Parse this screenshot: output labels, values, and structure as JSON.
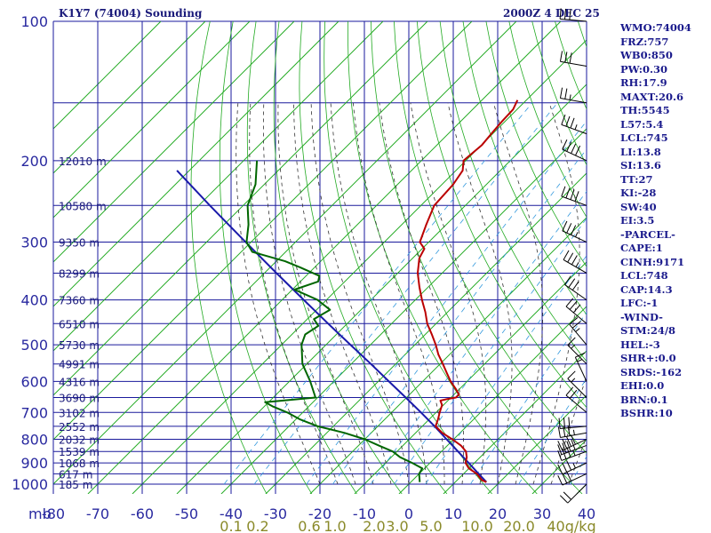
{
  "header": {
    "station": "K1Y7 (74004) Sounding",
    "time": "2000Z  4 DEC 25"
  },
  "indices": [
    "WMO:74004",
    "FRZ:757",
    "WB0:850",
    "PW:0.30",
    "RH:17.9",
    "MAXT:20.6",
    "TH:5545",
    "L57:5.4",
    "LCL:745",
    "LI:13.8",
    "SI:13.6",
    "TT:27",
    "KI:-28",
    "SW:40",
    "EI:3.5",
    "-PARCEL-",
    "CAPE:1",
    "CINH:9171",
    "LCL:748",
    "CAP:14.3",
    "LFC:-1",
    "-WIND-",
    "STM:24/8",
    "HEL:-3",
    "SHR+:0.0",
    "SRDS:-162",
    "EHI:0.0",
    "BRN:0.1",
    "BSHR:10"
  ],
  "colors": {
    "frame": "#1a1a9c",
    "isotherm": "#22aa22",
    "dry_adiabat": "#22aa22",
    "moist_adiabat": "#333333",
    "mixing_ratio": "#3399dd",
    "temperature": "#bb0000",
    "dewpoint": "#006600",
    "parcel": "#1a1aaa"
  },
  "chart_data": {
    "type": "line",
    "x_unit": "mb",
    "pressure_ticks": [
      100,
      200,
      300,
      400,
      500,
      600,
      700,
      800,
      900,
      1000
    ],
    "temperature_ticks": [
      "-80",
      "-70",
      "-60",
      "-50",
      "-40",
      "-30",
      "-20",
      "-10",
      "0",
      "10",
      "20",
      "30",
      "40"
    ],
    "mixing_ratio_labels": [
      "0.1",
      "0.2",
      "0.6",
      "1.0",
      "2.0",
      "3.0",
      "5.0",
      "10.0",
      "20.0",
      "40g/kg"
    ],
    "mixing_ratio_values": [
      0.1,
      0.2,
      0.6,
      1.0,
      2.0,
      3.0,
      5.0,
      10.0,
      20.0,
      40.0
    ],
    "height_labels": [
      {
        "p": 200,
        "text": "12010 m"
      },
      {
        "p": 250,
        "text": "10580 m"
      },
      {
        "p": 300,
        "text": "9350 m"
      },
      {
        "p": 350,
        "text": "8299 m"
      },
      {
        "p": 400,
        "text": "7360 m"
      },
      {
        "p": 450,
        "text": "6510 m"
      },
      {
        "p": 500,
        "text": "5730 m"
      },
      {
        "p": 550,
        "text": "4991 m"
      },
      {
        "p": 600,
        "text": "4316 m"
      },
      {
        "p": 650,
        "text": "3690 m"
      },
      {
        "p": 700,
        "text": "3102 m"
      },
      {
        "p": 750,
        "text": "2552 m"
      },
      {
        "p": 800,
        "text": "2032 m"
      },
      {
        "p": 850,
        "text": "1539 m"
      },
      {
        "p": 900,
        "text": "1068 m"
      },
      {
        "p": 950,
        "text": "617 m"
      },
      {
        "p": 1000,
        "text": "185 m"
      }
    ],
    "temperature_profile": [
      {
        "p": 990,
        "t": 17.0
      },
      {
        "p": 980,
        "t": 15.5
      },
      {
        "p": 950,
        "t": 13.0
      },
      {
        "p": 925,
        "t": 10.0
      },
      {
        "p": 900,
        "t": 8.0
      },
      {
        "p": 875,
        "t": 7.0
      },
      {
        "p": 850,
        "t": 5.5
      },
      {
        "p": 825,
        "t": 3.0
      },
      {
        "p": 800,
        "t": -0.3
      },
      {
        "p": 775,
        "t": -4.0
      },
      {
        "p": 750,
        "t": -7.0
      },
      {
        "p": 725,
        "t": -8.0
      },
      {
        "p": 700,
        "t": -9.2
      },
      {
        "p": 675,
        "t": -10.3
      },
      {
        "p": 660,
        "t": -11.7
      },
      {
        "p": 655,
        "t": -10.5
      },
      {
        "p": 650,
        "t": -8.9
      },
      {
        "p": 640,
        "t": -8.9
      },
      {
        "p": 620,
        "t": -11.2
      },
      {
        "p": 600,
        "t": -13.7
      },
      {
        "p": 575,
        "t": -16.5
      },
      {
        "p": 550,
        "t": -19.4
      },
      {
        "p": 525,
        "t": -22.5
      },
      {
        "p": 500,
        "t": -25.3
      },
      {
        "p": 475,
        "t": -28.5
      },
      {
        "p": 450,
        "t": -32.0
      },
      {
        "p": 425,
        "t": -35.0
      },
      {
        "p": 400,
        "t": -38.5
      },
      {
        "p": 375,
        "t": -42.0
      },
      {
        "p": 350,
        "t": -45.5
      },
      {
        "p": 325,
        "t": -48.5
      },
      {
        "p": 310,
        "t": -49.5
      },
      {
        "p": 300,
        "t": -52.0
      },
      {
        "p": 275,
        "t": -54.5
      },
      {
        "p": 250,
        "t": -57.0
      },
      {
        "p": 225,
        "t": -57.5
      },
      {
        "p": 210,
        "t": -58.5
      },
      {
        "p": 200,
        "t": -60.5
      },
      {
        "p": 185,
        "t": -59.9
      },
      {
        "p": 175,
        "t": -60.3
      },
      {
        "p": 165,
        "t": -60.7
      },
      {
        "p": 155,
        "t": -60.9
      },
      {
        "p": 148,
        "t": -62.0
      }
    ],
    "dewpoint_profile": [
      {
        "p": 990,
        "t": 2.0
      },
      {
        "p": 950,
        "t": 0.0
      },
      {
        "p": 925,
        "t": -0.5
      },
      {
        "p": 900,
        "t": -4.0
      },
      {
        "p": 875,
        "t": -8.0
      },
      {
        "p": 850,
        "t": -11.0
      },
      {
        "p": 825,
        "t": -15.5
      },
      {
        "p": 800,
        "t": -20.0
      },
      {
        "p": 775,
        "t": -26.0
      },
      {
        "p": 750,
        "t": -33.5
      },
      {
        "p": 725,
        "t": -39.0
      },
      {
        "p": 700,
        "t": -43.5
      },
      {
        "p": 680,
        "t": -48.0
      },
      {
        "p": 665,
        "t": -50.8
      },
      {
        "p": 660,
        "t": -47.3
      },
      {
        "p": 650,
        "t": -40.5
      },
      {
        "p": 600,
        "t": -45.3
      },
      {
        "p": 550,
        "t": -51.0
      },
      {
        "p": 500,
        "t": -55.5
      },
      {
        "p": 475,
        "t": -57.0
      },
      {
        "p": 455,
        "t": -56.0
      },
      {
        "p": 440,
        "t": -58.5
      },
      {
        "p": 420,
        "t": -57.0
      },
      {
        "p": 400,
        "t": -62.0
      },
      {
        "p": 380,
        "t": -69.5
      },
      {
        "p": 365,
        "t": -66.0
      },
      {
        "p": 355,
        "t": -67.0
      },
      {
        "p": 340,
        "t": -73.3
      },
      {
        "p": 330,
        "t": -78.0
      },
      {
        "p": 315,
        "t": -87.5
      },
      {
        "p": 300,
        "t": -91.0
      },
      {
        "p": 275,
        "t": -94.5
      },
      {
        "p": 250,
        "t": -99.0
      },
      {
        "p": 225,
        "t": -102.0
      },
      {
        "p": 200,
        "t": -107.0
      }
    ],
    "parcel_profile": [
      {
        "p": 990,
        "t": 17.0
      },
      {
        "p": 950,
        "t": 13.4
      },
      {
        "p": 900,
        "t": 8.7
      },
      {
        "p": 850,
        "t": 3.7
      },
      {
        "p": 800,
        "t": -1.6
      },
      {
        "p": 750,
        "t": -7.2
      },
      {
        "p": 700,
        "t": -13.4
      },
      {
        "p": 650,
        "t": -20.2
      },
      {
        "p": 600,
        "t": -27.6
      },
      {
        "p": 550,
        "t": -35.6
      },
      {
        "p": 500,
        "t": -44.5
      },
      {
        "p": 450,
        "t": -54.3
      },
      {
        "p": 400,
        "t": -65.1
      },
      {
        "p": 350,
        "t": -77.3
      },
      {
        "p": 300,
        "t": -91.2
      },
      {
        "p": 250,
        "t": -107.5
      },
      {
        "p": 210,
        "t": -122.8
      }
    ],
    "wind_barbs": [
      {
        "p": 1000,
        "dir": 225,
        "kt": 20
      },
      {
        "p": 950,
        "dir": 245,
        "kt": 30
      },
      {
        "p": 900,
        "dir": 245,
        "kt": 35
      },
      {
        "p": 850,
        "dir": 250,
        "kt": 35
      },
      {
        "p": 825,
        "dir": 250,
        "kt": 40
      },
      {
        "p": 800,
        "dir": 245,
        "kt": 40
      },
      {
        "p": 775,
        "dir": 260,
        "kt": 35
      },
      {
        "p": 750,
        "dir": 265,
        "kt": 30
      },
      {
        "p": 700,
        "dir": 310,
        "kt": 20
      },
      {
        "p": 650,
        "dir": 315,
        "kt": 15
      },
      {
        "p": 600,
        "dir": 335,
        "kt": 15
      },
      {
        "p": 550,
        "dir": 315,
        "kt": 15
      },
      {
        "p": 500,
        "dir": 320,
        "kt": 25
      },
      {
        "p": 450,
        "dir": 310,
        "kt": 30
      },
      {
        "p": 400,
        "dir": 305,
        "kt": 30
      },
      {
        "p": 350,
        "dir": 300,
        "kt": 35
      },
      {
        "p": 300,
        "dir": 295,
        "kt": 35
      },
      {
        "p": 250,
        "dir": 290,
        "kt": 40
      },
      {
        "p": 200,
        "dir": 295,
        "kt": 40
      },
      {
        "p": 175,
        "dir": 290,
        "kt": 35
      },
      {
        "p": 150,
        "dir": 280,
        "kt": 25
      },
      {
        "p": 125,
        "dir": 280,
        "kt": 30
      },
      {
        "p": 100,
        "dir": 275,
        "kt": 30
      }
    ]
  }
}
